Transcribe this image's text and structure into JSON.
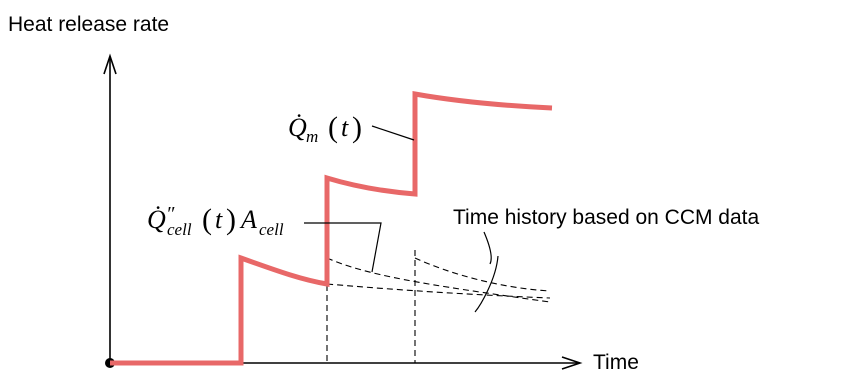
{
  "axes": {
    "y_label": "Heat release rate",
    "x_label": "Time"
  },
  "labels": {
    "qm_dot": "Q̇",
    "qm_sub": "m",
    "qm_paren_open": "(",
    "qm_arg": "t",
    "qm_paren_close": ")",
    "qcell_dot": "Q̇",
    "qcell_prime": "″",
    "qcell_sub": "cell",
    "qcell_paren_open": "(",
    "qcell_arg": "t",
    "qcell_paren_close": ")",
    "acell_main": "A",
    "acell_sub": "cell",
    "ccm_note": "Time history based on CCM data"
  },
  "colors": {
    "hrr_curve": "#e86868",
    "axes": "#000000"
  }
}
